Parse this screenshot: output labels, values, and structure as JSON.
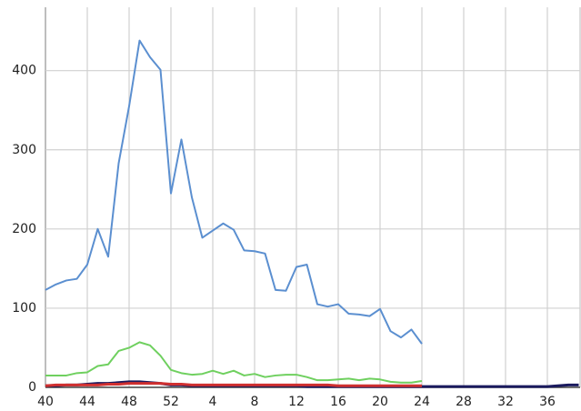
{
  "chart_data": {
    "type": "line",
    "categories": [
      "40",
      null,
      null,
      null,
      "44",
      null,
      null,
      null,
      "48",
      null,
      null,
      null,
      "52",
      null,
      null,
      null,
      "4",
      null,
      null,
      null,
      "8",
      null,
      null,
      null,
      "12",
      null,
      null,
      null,
      "16",
      null,
      null,
      null,
      "20",
      null,
      null,
      null,
      "24",
      null,
      null,
      null,
      "28",
      null,
      null,
      null,
      "32",
      null,
      null,
      null,
      "36",
      null,
      null,
      null
    ],
    "series": [
      {
        "color": "#5b8fd0",
        "values": [
          123,
          130,
          135,
          137,
          155,
          200,
          165,
          283,
          355,
          438,
          417,
          401,
          245,
          313,
          240,
          189,
          198,
          207,
          199,
          173,
          172,
          169,
          123,
          122,
          152,
          155,
          105,
          102,
          105,
          93,
          92,
          90,
          99,
          71,
          63,
          73,
          55,
          null,
          null,
          null,
          null,
          null,
          null,
          null,
          null,
          null,
          null,
          null,
          null,
          null,
          null,
          null
        ]
      },
      {
        "color": "#6fd05f",
        "values": [
          15,
          15,
          15,
          18,
          19,
          27,
          29,
          46,
          50,
          57,
          53,
          40,
          22,
          18,
          16,
          17,
          21,
          17,
          21,
          15,
          17,
          13,
          15,
          16,
          16,
          13,
          9,
          9,
          10,
          11,
          9,
          11,
          10,
          7,
          6,
          6,
          8,
          null,
          null,
          null,
          null,
          null,
          null,
          null,
          null,
          null,
          null,
          null,
          null,
          null,
          null,
          null
        ]
      },
      {
        "color": "#1a1a5e",
        "values": [
          2,
          2,
          3,
          3,
          4,
          5,
          5,
          6,
          7,
          7,
          6,
          5,
          3,
          3,
          2,
          2,
          2,
          2,
          2,
          2,
          2,
          2,
          2,
          2,
          2,
          1,
          1,
          1,
          1,
          1,
          1,
          1,
          1,
          1,
          1,
          1,
          1,
          1,
          1,
          1,
          1,
          1,
          1,
          1,
          1,
          1,
          1,
          1,
          1,
          2,
          3,
          3
        ]
      },
      {
        "color": "#d03030",
        "values": [
          2,
          3,
          3,
          3,
          3,
          3,
          4,
          4,
          5,
          5,
          5,
          5,
          4,
          4,
          3,
          3,
          3,
          3,
          3,
          3,
          3,
          3,
          3,
          3,
          3,
          3,
          3,
          3,
          2,
          2,
          2,
          2,
          2,
          2,
          2,
          2,
          2,
          null,
          null,
          null,
          null,
          null,
          null,
          null,
          null,
          null,
          null,
          null,
          null,
          null,
          null,
          null
        ]
      }
    ],
    "ylim": [
      0,
      480
    ],
    "yticks": [
      0,
      100,
      200,
      300,
      400
    ],
    "grid": true
  }
}
